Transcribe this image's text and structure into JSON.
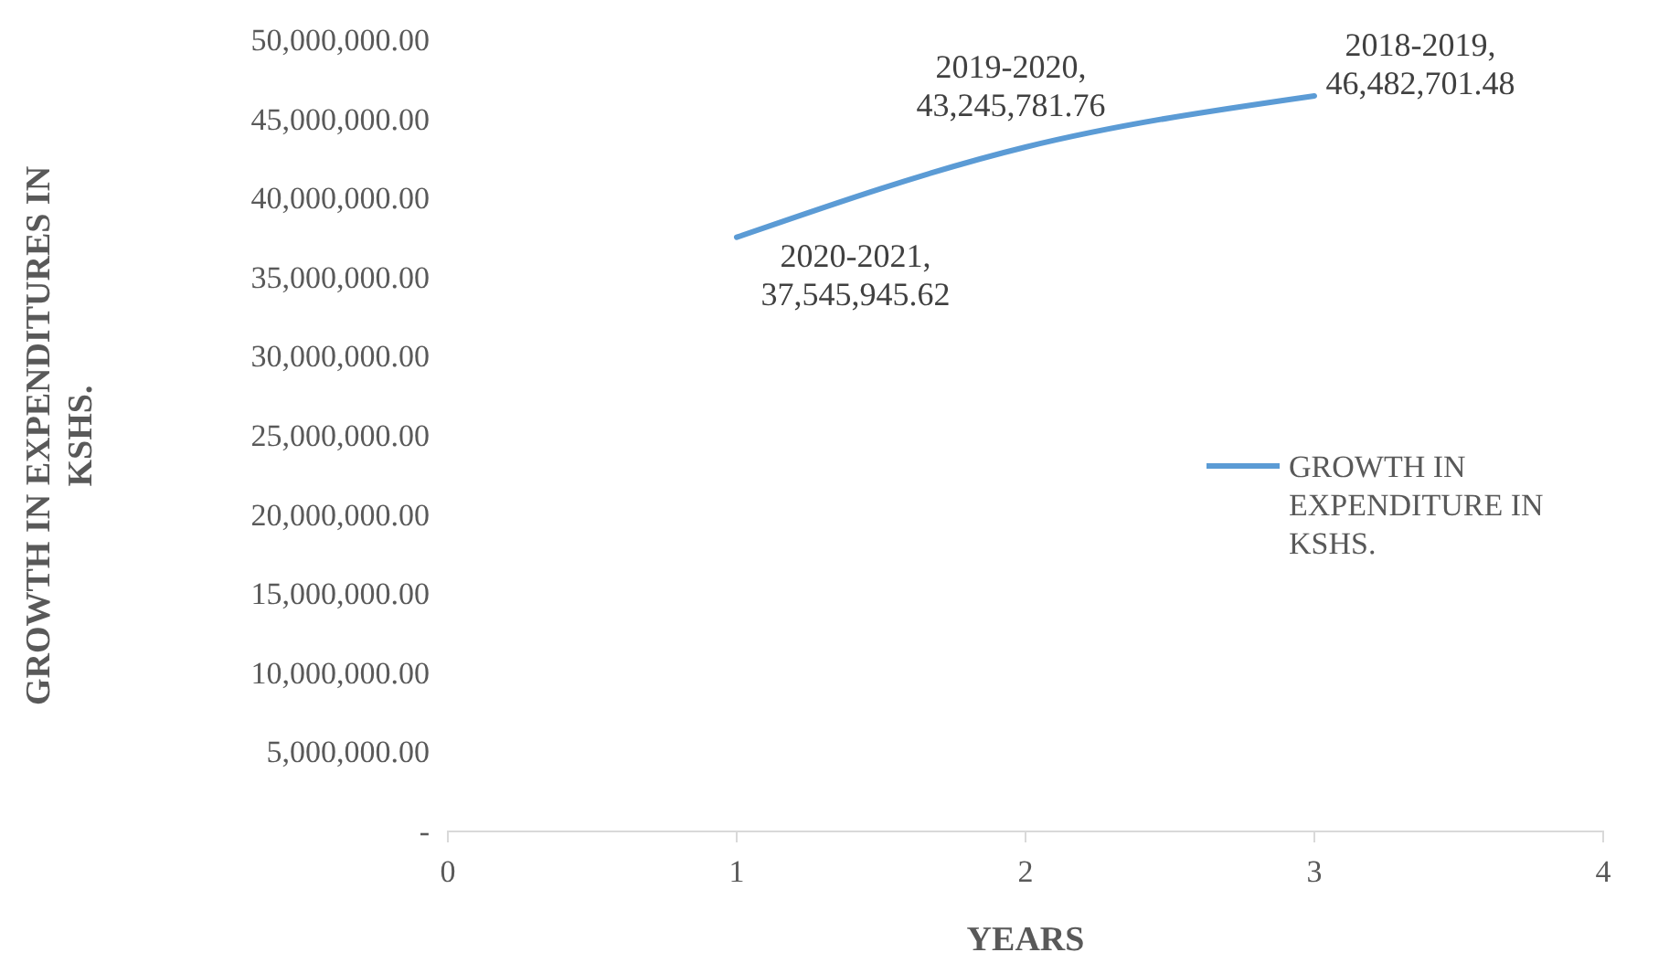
{
  "chart_data": {
    "type": "line",
    "xlabel": "YEARS",
    "ylabel": "GROWTH IN EXPENDITURES IN KSHS.",
    "x": [
      1,
      2,
      3
    ],
    "series": [
      {
        "name": "GROWTH IN EXPENDITURE IN KSHS.",
        "color": "#5b9bd5",
        "values": [
          37545945.62,
          43245781.76,
          46482701.48
        ],
        "value_labels": [
          "2020-2021, 37,545,945.62",
          "2019-2020, 43,245,781.76",
          "2018-2019, 46,482,701.48"
        ]
      }
    ],
    "xlim": [
      0,
      4
    ],
    "xticks": [
      0,
      1,
      2,
      3,
      4
    ],
    "ylim": [
      0,
      50000000
    ],
    "yticks": [
      {
        "value": 0,
        "label": "-"
      },
      {
        "value": 5000000,
        "label": "5,000,000.00"
      },
      {
        "value": 10000000,
        "label": "10,000,000.00"
      },
      {
        "value": 15000000,
        "label": "15,000,000.00"
      },
      {
        "value": 20000000,
        "label": "20,000,000.00"
      },
      {
        "value": 25000000,
        "label": "25,000,000.00"
      },
      {
        "value": 30000000,
        "label": "30,000,000.00"
      },
      {
        "value": 35000000,
        "label": "35,000,000.00"
      },
      {
        "value": 40000000,
        "label": "40,000,000.00"
      },
      {
        "value": 45000000,
        "label": "45,000,000.00"
      },
      {
        "value": 50000000,
        "label": "50,000,000.00"
      }
    ],
    "grid": false,
    "legend": "right",
    "marker": "none",
    "line_style": "solid"
  }
}
